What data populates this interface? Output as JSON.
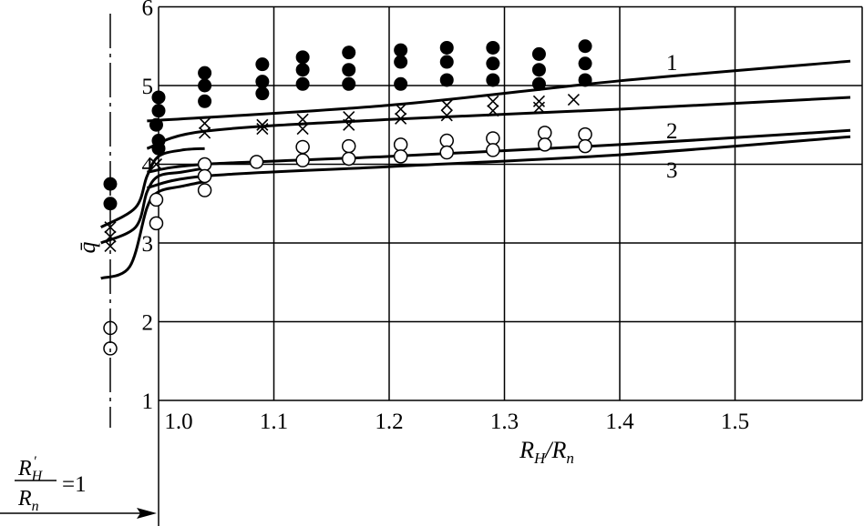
{
  "chart_data": {
    "type": "scatter",
    "title": "",
    "xlabel": "R_H/R_n",
    "ylabel": "q̄",
    "xlim": [
      0.99,
      1.6
    ],
    "ylim": [
      1,
      6
    ],
    "x_tick_labels": [
      "1.0",
      "1.1",
      "1.2",
      "1.3",
      "1.4",
      "1.5"
    ],
    "x_ticks": [
      1.0,
      1.1,
      1.2,
      1.3,
      1.4,
      1.5
    ],
    "y_tick_labels": [
      "1",
      "2",
      "3",
      "4",
      "5",
      "6"
    ],
    "y_ticks": [
      1,
      2,
      3,
      4,
      5,
      6
    ],
    "grid": true,
    "left_reference": {
      "label_numerator": "R'_H",
      "label_denominator": "R_n",
      "label_value": "=1",
      "points": [
        {
          "marker": "filled-circle",
          "y": 3.75
        },
        {
          "marker": "filled-circle",
          "y": 3.5
        },
        {
          "marker": "cross",
          "y": 3.2
        },
        {
          "marker": "cross",
          "y": 3.08
        },
        {
          "marker": "cross",
          "y": 2.96
        },
        {
          "marker": "open-circle",
          "y": 1.92
        },
        {
          "marker": "open-circle",
          "y": 1.66
        }
      ]
    },
    "series": [
      {
        "marker": "filled-circle",
        "points": [
          [
            1.0,
            4.85
          ],
          [
            1.0,
            4.68
          ],
          [
            0.998,
            4.5
          ],
          [
            1.0,
            4.3
          ],
          [
            1.0,
            4.2
          ],
          [
            1.04,
            5.16
          ],
          [
            1.04,
            5.0
          ],
          [
            1.04,
            4.8
          ],
          [
            1.09,
            5.27
          ],
          [
            1.09,
            5.05
          ],
          [
            1.09,
            4.9
          ],
          [
            1.125,
            5.36
          ],
          [
            1.125,
            5.2
          ],
          [
            1.125,
            5.02
          ],
          [
            1.165,
            5.42
          ],
          [
            1.165,
            5.2
          ],
          [
            1.165,
            5.02
          ],
          [
            1.21,
            5.45
          ],
          [
            1.21,
            5.3
          ],
          [
            1.21,
            5.02
          ],
          [
            1.25,
            5.48
          ],
          [
            1.25,
            5.3
          ],
          [
            1.25,
            5.07
          ],
          [
            1.29,
            5.48
          ],
          [
            1.29,
            5.28
          ],
          [
            1.29,
            5.07
          ],
          [
            1.33,
            5.4
          ],
          [
            1.33,
            5.2
          ],
          [
            1.33,
            5.02
          ],
          [
            1.37,
            5.5
          ],
          [
            1.37,
            5.28
          ],
          [
            1.37,
            5.07
          ]
        ]
      },
      {
        "marker": "cross",
        "points": [
          [
            0.998,
            4.0
          ],
          [
            1.04,
            4.52
          ],
          [
            1.04,
            4.4
          ],
          [
            1.09,
            4.5
          ],
          [
            1.09,
            4.45
          ],
          [
            1.125,
            4.57
          ],
          [
            1.125,
            4.45
          ],
          [
            1.165,
            4.6
          ],
          [
            1.165,
            4.5
          ],
          [
            1.21,
            4.7
          ],
          [
            1.21,
            4.58
          ],
          [
            1.25,
            4.75
          ],
          [
            1.25,
            4.62
          ],
          [
            1.29,
            4.8
          ],
          [
            1.29,
            4.68
          ],
          [
            1.33,
            4.8
          ],
          [
            1.33,
            4.72
          ],
          [
            1.36,
            4.82
          ]
        ]
      },
      {
        "marker": "open-circle",
        "points": [
          [
            0.998,
            3.55
          ],
          [
            0.998,
            3.25
          ],
          [
            1.04,
            4.0
          ],
          [
            1.04,
            3.85
          ],
          [
            1.04,
            3.67
          ],
          [
            1.085,
            4.03
          ],
          [
            1.125,
            4.22
          ],
          [
            1.125,
            4.05
          ],
          [
            1.165,
            4.23
          ],
          [
            1.165,
            4.07
          ],
          [
            1.21,
            4.25
          ],
          [
            1.21,
            4.1
          ],
          [
            1.25,
            4.3
          ],
          [
            1.25,
            4.15
          ],
          [
            1.29,
            4.33
          ],
          [
            1.29,
            4.18
          ],
          [
            1.335,
            4.4
          ],
          [
            1.335,
            4.25
          ],
          [
            1.37,
            4.38
          ],
          [
            1.37,
            4.23
          ]
        ]
      }
    ],
    "curves": [
      {
        "name": "1",
        "points": [
          [
            0.99,
            4.55
          ],
          [
            1.2,
            4.75
          ],
          [
            1.4,
            5.06
          ],
          [
            1.6,
            5.31
          ]
        ]
      },
      {
        "name": "",
        "points": [
          [
            0.99,
            4.2
          ],
          [
            1.04,
            4.42
          ],
          [
            1.2,
            4.57
          ],
          [
            1.4,
            4.7
          ],
          [
            1.6,
            4.85
          ]
        ]
      },
      {
        "name": "2",
        "points": [
          [
            0.99,
            3.9
          ],
          [
            1.04,
            4.0
          ],
          [
            1.2,
            4.1
          ],
          [
            1.4,
            4.25
          ],
          [
            1.6,
            4.43
          ]
        ]
      },
      {
        "name": "3",
        "points": [
          [
            0.99,
            3.7
          ],
          [
            1.04,
            3.85
          ],
          [
            1.2,
            3.97
          ],
          [
            1.4,
            4.12
          ],
          [
            1.6,
            4.35
          ]
        ]
      }
    ],
    "left_branches": [
      {
        "points": [
          [
            0.95,
            3.2
          ],
          [
            0.98,
            3.45
          ],
          [
            0.99,
            3.85
          ],
          [
            1.0,
            4.1
          ],
          [
            1.02,
            4.18
          ],
          [
            1.04,
            4.2
          ]
        ]
      },
      {
        "points": [
          [
            0.95,
            3.0
          ],
          [
            0.98,
            3.2
          ],
          [
            0.99,
            3.65
          ],
          [
            1.0,
            3.85
          ],
          [
            1.02,
            3.9
          ],
          [
            1.04,
            3.95
          ]
        ]
      },
      {
        "points": [
          [
            0.95,
            2.55
          ],
          [
            0.975,
            2.7
          ],
          [
            0.99,
            3.45
          ],
          [
            1.0,
            3.65
          ],
          [
            1.02,
            3.72
          ],
          [
            1.04,
            3.78
          ]
        ]
      }
    ]
  }
}
